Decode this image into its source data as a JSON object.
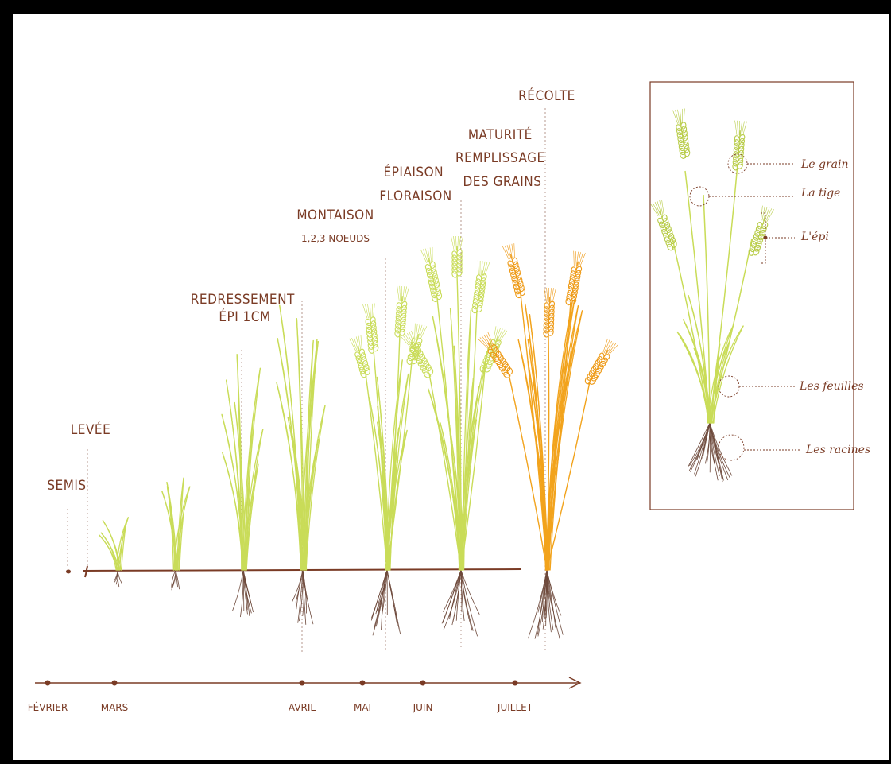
{
  "stages": [
    {
      "id": "semis",
      "lines": [
        "SEMIS"
      ]
    },
    {
      "id": "levee",
      "lines": [
        "LEVÉE"
      ]
    },
    {
      "id": "redressement",
      "lines": [
        "REDRESSEMENT",
        "ÉPI 1CM"
      ]
    },
    {
      "id": "montaison",
      "lines": [
        "MONTAISON"
      ],
      "sub": "1,2,3 NOEUDS"
    },
    {
      "id": "epiaison",
      "lines": [
        "ÉPIAISON",
        "FLORAISON"
      ]
    },
    {
      "id": "maturite",
      "lines": [
        "MATURITÉ",
        "REMPLISSAGE",
        "DES GRAINS"
      ]
    },
    {
      "id": "recolte",
      "lines": [
        "RÉCOLTE"
      ]
    }
  ],
  "months": [
    "FÉVRIER",
    "MARS",
    "AVRIL",
    "MAI",
    "JUIN",
    "JUILLET"
  ],
  "plant_parts": [
    "Le grain",
    "La tige",
    "L'épi",
    "Les feuilles",
    "Les racines"
  ],
  "colors": {
    "brown": "#7a3b25",
    "green": "#c9dc58",
    "ear": "#b8cc48",
    "gold": "#f2a31c",
    "root": "#6e4a3c"
  }
}
